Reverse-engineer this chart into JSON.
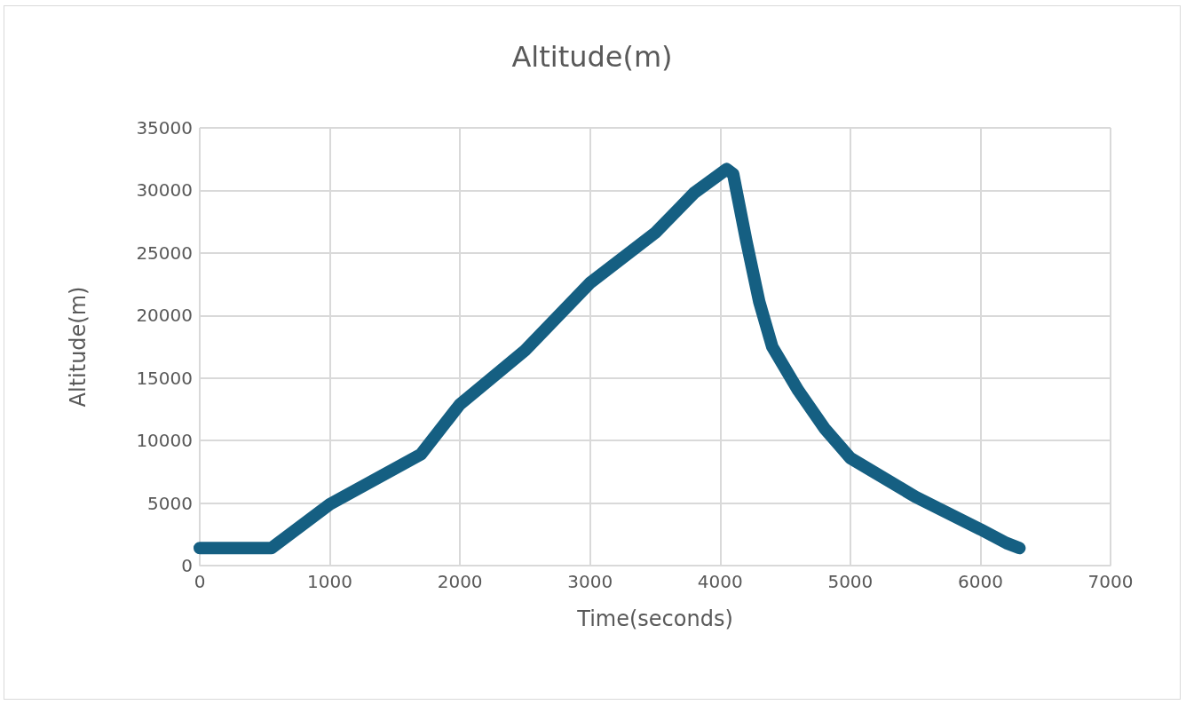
{
  "chart_data": {
    "type": "line",
    "title": "Altitude(m)",
    "xlabel": "Time(seconds)",
    "ylabel": "Altitude(m)",
    "x": [
      0,
      550,
      1000,
      1700,
      2000,
      2500,
      3000,
      3500,
      3800,
      4050,
      4100,
      4200,
      4300,
      4400,
      4600,
      4800,
      5000,
      5500,
      6000,
      6200,
      6300
    ],
    "series": [
      {
        "color": "#155f82",
        "values": [
          1400,
          1400,
          4900,
          8900,
          12900,
          17200,
          22600,
          26600,
          29800,
          31700,
          31300,
          26000,
          21100,
          17500,
          14000,
          11000,
          8600,
          5500,
          2900,
          1800,
          1400
        ]
      }
    ],
    "xlim": [
      0,
      7000
    ],
    "xticks": [
      0,
      1000,
      2000,
      3000,
      4000,
      5000,
      6000,
      7000
    ],
    "ylim": [
      0,
      35000
    ],
    "yticks": [
      0,
      5000,
      10000,
      15000,
      20000,
      25000,
      30000,
      35000
    ],
    "grid": true,
    "line_style": "solid"
  }
}
